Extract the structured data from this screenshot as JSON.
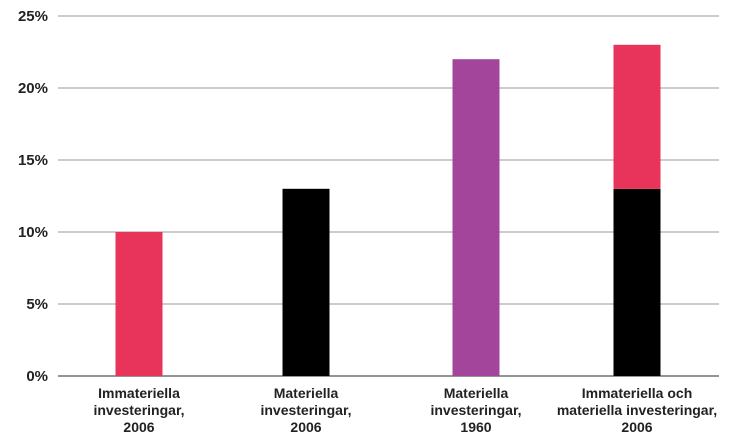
{
  "chart_data": {
    "type": "bar",
    "stacked": true,
    "ylim": [
      0,
      25
    ],
    "yticks": [
      "0%",
      "5%",
      "10%",
      "15%",
      "20%",
      "25%"
    ],
    "ytick_values": [
      0,
      5,
      10,
      15,
      20,
      25
    ],
    "grid": true,
    "categories": [
      [
        "Immateriella",
        "investeringar,",
        "2006"
      ],
      [
        "Materiella",
        "investeringar,",
        "2006"
      ],
      [
        "Materiella",
        "investeringar,",
        "1960"
      ],
      [
        "Immateriella och",
        "materiella investeringar,",
        "2006"
      ]
    ],
    "bars": [
      {
        "segments": [
          {
            "value": 10,
            "color": "#e8345a"
          }
        ]
      },
      {
        "segments": [
          {
            "value": 13,
            "color": "#000000"
          }
        ]
      },
      {
        "segments": [
          {
            "value": 22,
            "color": "#a3469b"
          }
        ]
      },
      {
        "segments": [
          {
            "value": 13,
            "color": "#000000"
          },
          {
            "value": 10,
            "color": "#e8345a"
          }
        ]
      }
    ]
  }
}
